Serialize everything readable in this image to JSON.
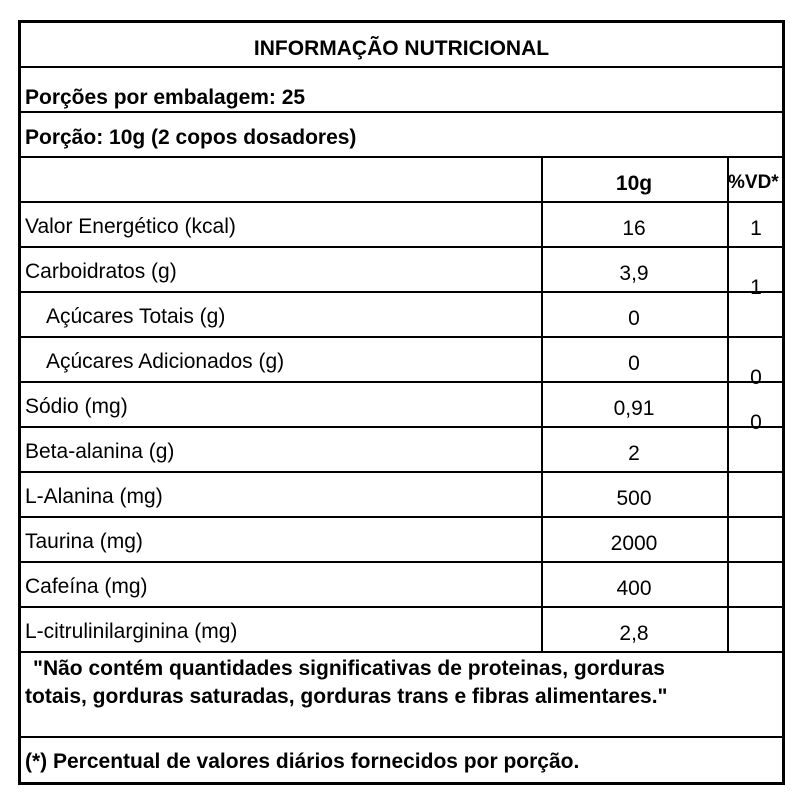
{
  "title": "INFORMAÇÃO NUTRICIONAL",
  "servings_per_package": "Porções por embalagem: 25",
  "serving_size": "Porção: 10g (2 copos dosadores)",
  "columns": [
    "",
    "10g",
    "%VD*"
  ],
  "rows": [
    {
      "name": "Valor Energético (kcal)",
      "amount": "16",
      "dv": "1",
      "indent": false
    },
    {
      "name": "Carboidratos (g)",
      "amount": "3,9",
      "dv": "1",
      "indent": false
    },
    {
      "name": "Açúcares Totais (g)",
      "amount": "0",
      "dv": "",
      "indent": true
    },
    {
      "name": "Açúcares Adicionados (g)",
      "amount": "0",
      "dv": "0",
      "indent": true
    },
    {
      "name": "Sódio (mg)",
      "amount": "0,91",
      "dv": "0",
      "indent": false
    },
    {
      "name": "Beta-alanina (g)",
      "amount": "2",
      "dv": "",
      "indent": false
    },
    {
      "name": "L-Alanina (mg)",
      "amount": "500",
      "dv": "",
      "indent": false
    },
    {
      "name": "Taurina (mg)",
      "amount": "2000",
      "dv": "",
      "indent": false
    },
    {
      "name": "Cafeína (mg)",
      "amount": "400",
      "dv": "",
      "indent": false
    },
    {
      "name": "L-citrulinilarginina (mg)",
      "amount": "2,8",
      "dv": "",
      "indent": false
    }
  ],
  "note_line1": "\"Não contém quantidades significativas de proteinas, gorduras",
  "note_line2": "totais, gorduras saturadas, gorduras trans e fibras alimentares.\"",
  "footnote": "(*) Percentual de valores diários fornecidos por porção."
}
